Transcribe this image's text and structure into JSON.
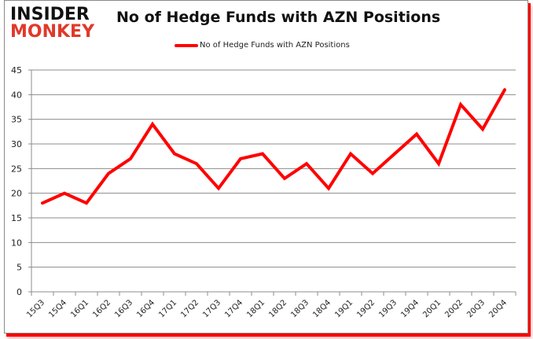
{
  "logo": {
    "line1": "INSIDER",
    "line2": "MONKEY"
  },
  "colors": {
    "series": "#ff0000",
    "grid": "#8c8c8c",
    "logo_top": "#111111",
    "logo_bottom": "#e0392a"
  },
  "chart_data": {
    "type": "line",
    "title": "No of Hedge Funds with AZN Positions",
    "xlabel": "",
    "ylabel": "",
    "ylim": [
      0,
      45
    ],
    "yticks": [
      0,
      5,
      10,
      15,
      20,
      25,
      30,
      35,
      40,
      45
    ],
    "grid": true,
    "legend_position": "top",
    "categories": [
      "15Q3",
      "15Q4",
      "16Q1",
      "16Q2",
      "16Q3",
      "16Q4",
      "17Q1",
      "17Q2",
      "17Q3",
      "17Q4",
      "18Q1",
      "18Q2",
      "18Q3",
      "18Q4",
      "19Q1",
      "19Q2",
      "19Q3",
      "19Q4",
      "20Q1",
      "20Q2",
      "20Q3",
      "20Q4"
    ],
    "series": [
      {
        "name": "No of Hedge Funds with AZN Positions",
        "values": [
          18,
          20,
          18,
          24,
          27,
          34,
          28,
          26,
          21,
          27,
          28,
          23,
          26,
          21,
          28,
          24,
          28,
          32,
          26,
          38,
          33,
          41
        ]
      }
    ]
  }
}
